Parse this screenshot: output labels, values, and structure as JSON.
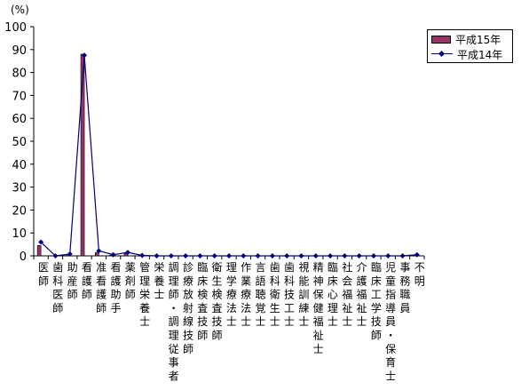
{
  "chart_data": {
    "type": "bar",
    "unit_label": "(%)",
    "ylim": [
      0,
      100
    ],
    "yticks": [
      0,
      10,
      20,
      30,
      40,
      50,
      60,
      70,
      80,
      90,
      100
    ],
    "grid": false,
    "legend_position": "right",
    "categories": [
      "医師",
      "歯科医師",
      "助産師",
      "看護師",
      "准看護師",
      "看護助手",
      "薬剤師",
      "管理栄養士",
      "栄養士",
      "調理師・調理従事者",
      "診療放射線技師",
      "臨床検査技師",
      "衛生検査技師",
      "理学療法士",
      "作業療法士",
      "言語聴覚士",
      "歯科衛生士",
      "歯科技工士",
      "視能訓練士",
      "精神保健福祉士",
      "臨床心理士",
      "社会福祉士",
      "介護福祉士",
      "臨床工学技師",
      "児童指導員・保育士",
      "事務職員",
      "不明"
    ],
    "series": [
      {
        "name": "平成15年",
        "type": "bar",
        "color": "#993366",
        "values": [
          4.5,
          0,
          0.5,
          88,
          1.5,
          0.3,
          1,
          0.2,
          0,
          0,
          0,
          0,
          0,
          0,
          0,
          0,
          0,
          0,
          0,
          0,
          0,
          0,
          0,
          0,
          0,
          0,
          0.5
        ]
      },
      {
        "name": "平成14年",
        "type": "line",
        "color": "#000080",
        "values": [
          6,
          0,
          0.8,
          87.5,
          2.2,
          0.5,
          1.5,
          0.2,
          0,
          0,
          0,
          0,
          0,
          0,
          0,
          0,
          0,
          0,
          0,
          0,
          0,
          0,
          0,
          0,
          0,
          0,
          0.5
        ]
      }
    ]
  }
}
